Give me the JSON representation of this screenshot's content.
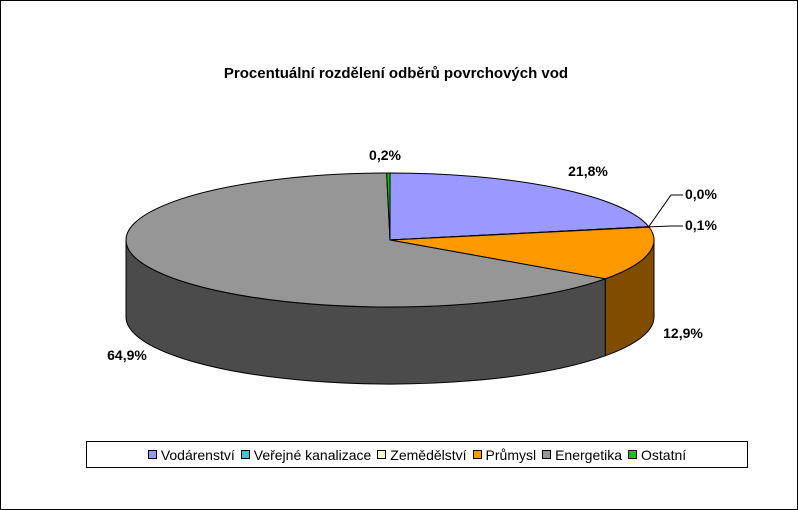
{
  "chart_data": {
    "type": "pie",
    "title": "Procentuální rozdělení odběrů povrchových vod",
    "categories": [
      "Vodárenství",
      "Veřejné kanalizace",
      "Zemědělství",
      "Průmysl",
      "Energetika",
      "Ostatní"
    ],
    "values": [
      21.8,
      0.0,
      0.1,
      12.9,
      64.9,
      0.2
    ],
    "data_labels": [
      "21,8%",
      "0,0%",
      "0,1%",
      "12,9%",
      "64,9%",
      "0,2%"
    ],
    "colors": [
      "#9999ff",
      "#33cccc",
      "#ffffcc",
      "#ff9900",
      "#969696",
      "#00cc00"
    ],
    "side_colors": [
      "#4d4d80",
      "#1a6666",
      "#808066",
      "#804c00",
      "#4b4b4b",
      "#006600"
    ],
    "style": "3d",
    "legend_position": "bottom",
    "grid": false
  }
}
